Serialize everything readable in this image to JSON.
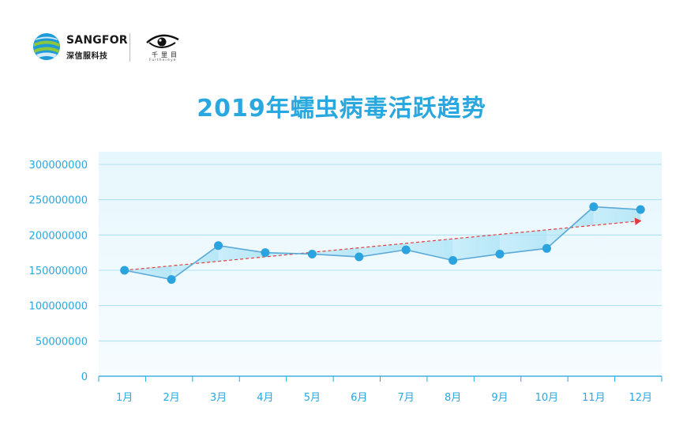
{
  "logos": {
    "sangfor_name": "SANGFOR",
    "sangfor_sub": "深信服科技",
    "partner_name": "千里目",
    "partner_sub": "Furthereye"
  },
  "colors": {
    "title": "#29a7df",
    "axis_text": "#29a7df",
    "line": "#5aa9d6",
    "marker": "#2aa3df",
    "fill": "#aee4f7",
    "trend": "#e03c3c",
    "gridline": "#9fd9ef",
    "plot_bg_top": "#e6f7fd",
    "plot_bg_bottom": "#f7fcfe"
  },
  "chart_data": {
    "type": "line",
    "title": "2019年蠕虫病毒活跃趋势",
    "categories": [
      "1月",
      "2月",
      "3月",
      "4月",
      "5月",
      "6月",
      "7月",
      "8月",
      "9月",
      "10月",
      "11月",
      "12月"
    ],
    "series": [
      {
        "values": [
          150000000,
          137000000,
          185000000,
          175000000,
          173000000,
          169000000,
          179000000,
          164000000,
          173000000,
          181000000,
          240000000,
          236000000
        ]
      }
    ],
    "trendline": {
      "start": 150000000,
      "end": 220000000,
      "style": "dashed-arrow"
    },
    "ylim": [
      0,
      300000000
    ],
    "yticks": [
      "0",
      "50000000",
      "100000000",
      "150000000",
      "200000000",
      "250000000",
      "300000000"
    ],
    "xlabel": "",
    "ylabel": "",
    "grid": true,
    "legend": "none"
  }
}
